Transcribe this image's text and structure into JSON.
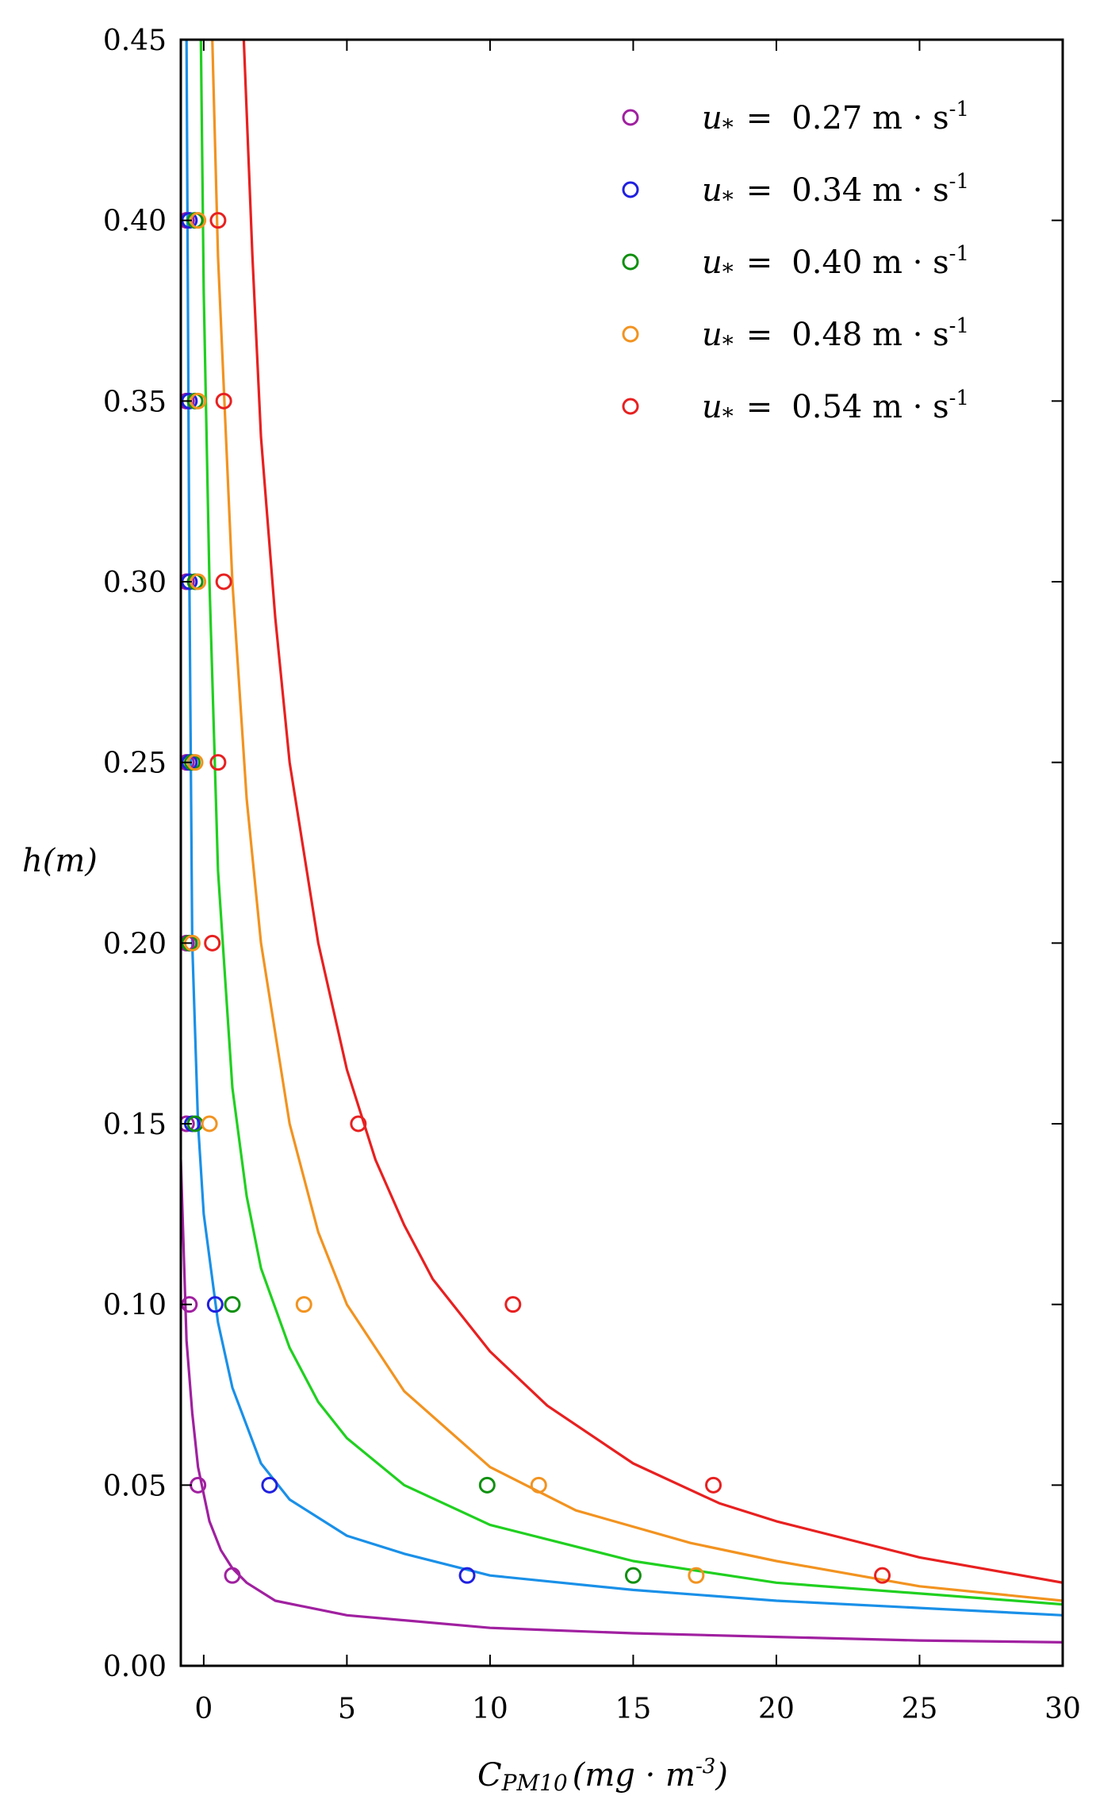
{
  "chart_data": {
    "type": "scatter",
    "title": "",
    "xlabel": "C_PM10 (mg · m^-3)",
    "xlabel_main": "C",
    "xlabel_sub": "PM10",
    "xlabel_unit": "(mg · m",
    "xlabel_exp": "-3",
    "xlabel_close": ")",
    "ylabel": "h(m)",
    "xlim": [
      -0.8,
      30
    ],
    "ylim": [
      0,
      0.45
    ],
    "x_ticks": [
      0,
      5,
      10,
      15,
      20,
      25,
      30
    ],
    "x_tick_labels": [
      "0",
      "5",
      "10",
      "15",
      "20",
      "25",
      "30"
    ],
    "y_ticks": [
      0,
      0.05,
      0.1,
      0.15,
      0.2,
      0.25,
      0.3,
      0.35,
      0.4,
      0.45
    ],
    "y_tick_labels": [
      "0.00",
      "0.05",
      "0.10",
      "0.15",
      "0.20",
      "0.25",
      "0.30",
      "0.35",
      "0.40",
      "0.45"
    ],
    "legend_position": "top-right",
    "series": [
      {
        "name": "u* = 0.27 m · s-1",
        "symbol": "u",
        "subscript": "*",
        "equals": "=",
        "value": "0.27 m · s",
        "exponent": "-1",
        "color": "#a020a0",
        "points": [
          {
            "x": 1.0,
            "y": 0.025
          },
          {
            "x": -0.2,
            "y": 0.05
          },
          {
            "x": -0.5,
            "y": 0.1
          },
          {
            "x": -0.6,
            "y": 0.15
          },
          {
            "x": -0.6,
            "y": 0.2
          },
          {
            "x": -0.6,
            "y": 0.25
          },
          {
            "x": -0.6,
            "y": 0.3
          },
          {
            "x": -0.6,
            "y": 0.35
          },
          {
            "x": -0.6,
            "y": 0.4
          }
        ],
        "curve": [
          {
            "x": -0.8,
            "y": 0.14
          },
          {
            "x": -0.6,
            "y": 0.09
          },
          {
            "x": -0.4,
            "y": 0.07
          },
          {
            "x": -0.2,
            "y": 0.055
          },
          {
            "x": 0.2,
            "y": 0.04
          },
          {
            "x": 0.6,
            "y": 0.032
          },
          {
            "x": 1.0,
            "y": 0.027
          },
          {
            "x": 1.5,
            "y": 0.023
          },
          {
            "x": 2.5,
            "y": 0.018
          },
          {
            "x": 5.0,
            "y": 0.014
          },
          {
            "x": 10.0,
            "y": 0.0105
          },
          {
            "x": 15.0,
            "y": 0.009
          },
          {
            "x": 20.0,
            "y": 0.008
          },
          {
            "x": 25.0,
            "y": 0.007
          },
          {
            "x": 30.0,
            "y": 0.0065
          }
        ]
      },
      {
        "name": "u* = 0.34 m · s-1",
        "symbol": "u",
        "subscript": "*",
        "equals": "=",
        "value": "0.34 m · s",
        "exponent": "-1",
        "color": "#2020e0",
        "curve_color": "#1a90e8",
        "points": [
          {
            "x": 2.3,
            "y": 0.05
          },
          {
            "x": 9.2,
            "y": 0.025
          },
          {
            "x": 0.4,
            "y": 0.1
          },
          {
            "x": -0.4,
            "y": 0.15
          },
          {
            "x": -0.5,
            "y": 0.2
          },
          {
            "x": -0.5,
            "y": 0.25
          },
          {
            "x": -0.5,
            "y": 0.3
          },
          {
            "x": -0.5,
            "y": 0.35
          },
          {
            "x": -0.5,
            "y": 0.4
          }
        ],
        "curve": [
          {
            "x": -0.6,
            "y": 0.45
          },
          {
            "x": -0.5,
            "y": 0.3
          },
          {
            "x": -0.4,
            "y": 0.2
          },
          {
            "x": -0.2,
            "y": 0.15
          },
          {
            "x": 0.0,
            "y": 0.125
          },
          {
            "x": 0.5,
            "y": 0.095
          },
          {
            "x": 1.0,
            "y": 0.077
          },
          {
            "x": 2.0,
            "y": 0.056
          },
          {
            "x": 3.0,
            "y": 0.046
          },
          {
            "x": 5.0,
            "y": 0.036
          },
          {
            "x": 7.0,
            "y": 0.031
          },
          {
            "x": 10.0,
            "y": 0.025
          },
          {
            "x": 15.0,
            "y": 0.021
          },
          {
            "x": 20.0,
            "y": 0.018
          },
          {
            "x": 25.0,
            "y": 0.016
          },
          {
            "x": 30.0,
            "y": 0.014
          }
        ]
      },
      {
        "name": "u* = 0.40 m · s-1",
        "symbol": "u",
        "subscript": "*",
        "equals": "=",
        "value": "0.40 m · s",
        "exponent": "-1",
        "color": "#109010",
        "curve_color": "#20d020",
        "points": [
          {
            "x": 1.0,
            "y": 0.1
          },
          {
            "x": 9.9,
            "y": 0.05
          },
          {
            "x": 15.0,
            "y": 0.025
          },
          {
            "x": -0.3,
            "y": 0.15
          },
          {
            "x": -0.5,
            "y": 0.2
          },
          {
            "x": -0.4,
            "y": 0.25
          },
          {
            "x": -0.3,
            "y": 0.3
          },
          {
            "x": -0.3,
            "y": 0.35
          },
          {
            "x": -0.3,
            "y": 0.4
          }
        ],
        "curve": [
          {
            "x": -0.1,
            "y": 0.45
          },
          {
            "x": 0.0,
            "y": 0.38
          },
          {
            "x": 0.2,
            "y": 0.3
          },
          {
            "x": 0.5,
            "y": 0.22
          },
          {
            "x": 1.0,
            "y": 0.16
          },
          {
            "x": 1.5,
            "y": 0.13
          },
          {
            "x": 2.0,
            "y": 0.11
          },
          {
            "x": 3.0,
            "y": 0.088
          },
          {
            "x": 4.0,
            "y": 0.073
          },
          {
            "x": 5.0,
            "y": 0.063
          },
          {
            "x": 7.0,
            "y": 0.05
          },
          {
            "x": 10.0,
            "y": 0.039
          },
          {
            "x": 15.0,
            "y": 0.029
          },
          {
            "x": 20.0,
            "y": 0.023
          },
          {
            "x": 25.0,
            "y": 0.02
          },
          {
            "x": 30.0,
            "y": 0.017
          }
        ]
      },
      {
        "name": "u* = 0.48 m · s-1",
        "symbol": "u",
        "subscript": "*",
        "equals": "=",
        "value": "0.48 m · s",
        "exponent": "-1",
        "color": "#f29320",
        "points": [
          {
            "x": 3.5,
            "y": 0.1
          },
          {
            "x": 11.7,
            "y": 0.05
          },
          {
            "x": 17.2,
            "y": 0.025
          },
          {
            "x": 0.2,
            "y": 0.15
          },
          {
            "x": -0.4,
            "y": 0.2
          },
          {
            "x": -0.3,
            "y": 0.25
          },
          {
            "x": -0.2,
            "y": 0.3
          },
          {
            "x": -0.2,
            "y": 0.35
          },
          {
            "x": -0.2,
            "y": 0.4
          }
        ],
        "curve": [
          {
            "x": 0.3,
            "y": 0.45
          },
          {
            "x": 0.5,
            "y": 0.39
          },
          {
            "x": 1.0,
            "y": 0.3
          },
          {
            "x": 1.5,
            "y": 0.24
          },
          {
            "x": 2.0,
            "y": 0.2
          },
          {
            "x": 3.0,
            "y": 0.15
          },
          {
            "x": 4.0,
            "y": 0.12
          },
          {
            "x": 5.0,
            "y": 0.1
          },
          {
            "x": 7.0,
            "y": 0.076
          },
          {
            "x": 10.0,
            "y": 0.055
          },
          {
            "x": 13.0,
            "y": 0.043
          },
          {
            "x": 17.0,
            "y": 0.034
          },
          {
            "x": 20.0,
            "y": 0.029
          },
          {
            "x": 25.0,
            "y": 0.022
          },
          {
            "x": 30.0,
            "y": 0.018
          }
        ]
      },
      {
        "name": "u* = 0.54 m · s-1",
        "symbol": "u",
        "subscript": "*",
        "equals": "=",
        "value": "0.54 m · s",
        "exponent": "-1",
        "color": "#e82020",
        "points": [
          {
            "x": 5.4,
            "y": 0.15
          },
          {
            "x": 10.8,
            "y": 0.1
          },
          {
            "x": 17.8,
            "y": 0.05
          },
          {
            "x": 23.7,
            "y": 0.025
          },
          {
            "x": 0.3,
            "y": 0.2
          },
          {
            "x": 0.5,
            "y": 0.25
          },
          {
            "x": 0.7,
            "y": 0.3
          },
          {
            "x": 0.7,
            "y": 0.35
          },
          {
            "x": 0.5,
            "y": 0.4
          }
        ],
        "curve": [
          {
            "x": 1.4,
            "y": 0.45
          },
          {
            "x": 1.7,
            "y": 0.39
          },
          {
            "x": 2.0,
            "y": 0.34
          },
          {
            "x": 2.5,
            "y": 0.29
          },
          {
            "x": 3.0,
            "y": 0.25
          },
          {
            "x": 4.0,
            "y": 0.2
          },
          {
            "x": 5.0,
            "y": 0.165
          },
          {
            "x": 6.0,
            "y": 0.14
          },
          {
            "x": 7.0,
            "y": 0.122
          },
          {
            "x": 8.0,
            "y": 0.107
          },
          {
            "x": 10.0,
            "y": 0.087
          },
          {
            "x": 12.0,
            "y": 0.072
          },
          {
            "x": 15.0,
            "y": 0.056
          },
          {
            "x": 18.0,
            "y": 0.045
          },
          {
            "x": 20.0,
            "y": 0.04
          },
          {
            "x": 25.0,
            "y": 0.03
          },
          {
            "x": 30.0,
            "y": 0.023
          }
        ]
      }
    ]
  }
}
